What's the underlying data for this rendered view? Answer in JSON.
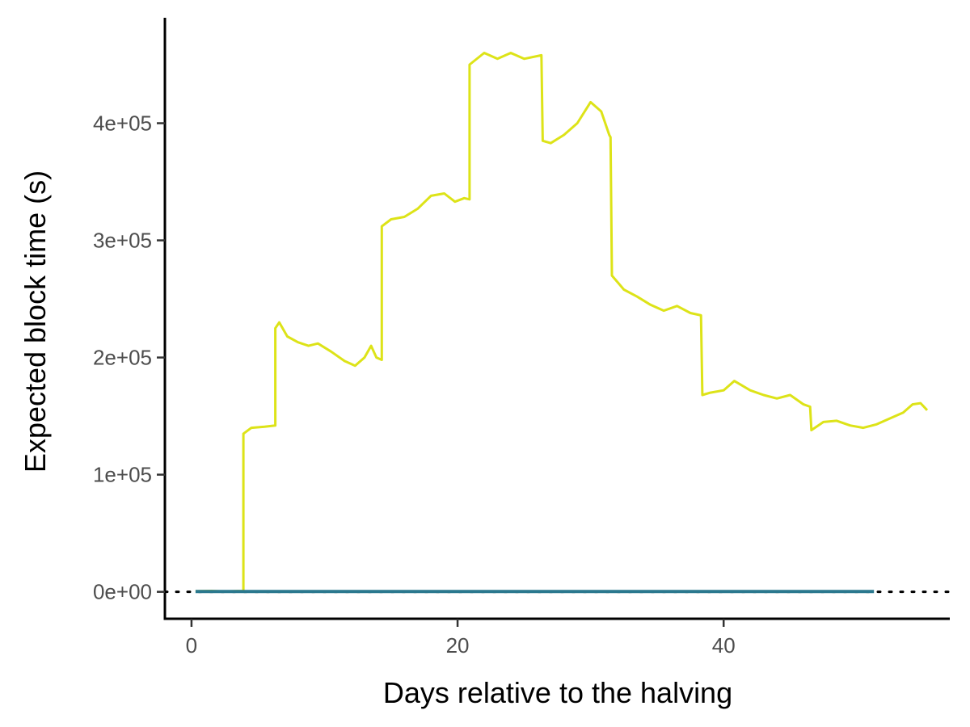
{
  "chart_data": {
    "type": "line",
    "title": "",
    "xlabel": "Days relative to the halving",
    "ylabel": "Expected block time (s)",
    "xlim": [
      -2,
      57
    ],
    "ylim": [
      -23000,
      490000
    ],
    "x_ticks": [
      {
        "value": 0,
        "label": "0"
      },
      {
        "value": 20,
        "label": "20"
      },
      {
        "value": 40,
        "label": "40"
      }
    ],
    "y_ticks": [
      {
        "value": 0,
        "label": "0e+00"
      },
      {
        "value": 100000,
        "label": "1e+05"
      },
      {
        "value": 200000,
        "label": "2e+05"
      },
      {
        "value": 300000,
        "label": "3e+05"
      },
      {
        "value": 400000,
        "label": "4e+05"
      }
    ],
    "grid": false,
    "legend": "none",
    "reference_line": {
      "y": 0,
      "style": "dotted",
      "color": "#000000"
    },
    "series": [
      {
        "color": "#dde318",
        "points": [
          [
            0.3,
            500
          ],
          [
            1.5,
            800
          ],
          [
            2.5,
            300
          ],
          [
            3.5,
            700
          ],
          [
            3.9,
            500
          ],
          [
            3.9,
            135000
          ],
          [
            4.5,
            140000
          ],
          [
            5.5,
            141000
          ],
          [
            6.3,
            142000
          ],
          [
            6.3,
            225000
          ],
          [
            6.6,
            230000
          ],
          [
            7.2,
            218000
          ],
          [
            8.0,
            213000
          ],
          [
            8.8,
            210000
          ],
          [
            9.5,
            212000
          ],
          [
            10.5,
            205000
          ],
          [
            11.5,
            197000
          ],
          [
            12.3,
            193000
          ],
          [
            13.0,
            200000
          ],
          [
            13.5,
            210000
          ],
          [
            13.9,
            200000
          ],
          [
            14.3,
            198000
          ],
          [
            14.3,
            312000
          ],
          [
            15.0,
            318000
          ],
          [
            16.0,
            320000
          ],
          [
            17.0,
            327000
          ],
          [
            18.0,
            338000
          ],
          [
            19.0,
            340000
          ],
          [
            19.8,
            333000
          ],
          [
            20.5,
            336000
          ],
          [
            20.9,
            335000
          ],
          [
            20.9,
            450000
          ],
          [
            22.0,
            460000
          ],
          [
            23.0,
            455000
          ],
          [
            24.0,
            460000
          ],
          [
            25.0,
            455000
          ],
          [
            26.3,
            458000
          ],
          [
            26.4,
            385000
          ],
          [
            27.0,
            383000
          ],
          [
            28.0,
            390000
          ],
          [
            29.0,
            400000
          ],
          [
            30.0,
            418000
          ],
          [
            30.8,
            410000
          ],
          [
            31.4,
            390000
          ],
          [
            31.5,
            388000
          ],
          [
            31.6,
            270000
          ],
          [
            32.5,
            258000
          ],
          [
            33.5,
            252000
          ],
          [
            34.5,
            245000
          ],
          [
            35.5,
            240000
          ],
          [
            36.5,
            244000
          ],
          [
            37.5,
            238000
          ],
          [
            38.3,
            236000
          ],
          [
            38.4,
            168000
          ],
          [
            39.0,
            170000
          ],
          [
            40.0,
            172000
          ],
          [
            40.8,
            180000
          ],
          [
            42.0,
            172000
          ],
          [
            43.0,
            168000
          ],
          [
            44.0,
            165000
          ],
          [
            45.0,
            168000
          ],
          [
            46.0,
            160000
          ],
          [
            46.5,
            158000
          ],
          [
            46.6,
            138000
          ],
          [
            47.5,
            145000
          ],
          [
            48.5,
            146000
          ],
          [
            49.5,
            142000
          ],
          [
            50.5,
            140000
          ],
          [
            51.5,
            143000
          ],
          [
            52.5,
            148000
          ],
          [
            53.5,
            153000
          ],
          [
            54.2,
            160000
          ],
          [
            54.8,
            161000
          ],
          [
            55.3,
            155000
          ]
        ]
      },
      {
        "color": "#2a788e",
        "points": [
          [
            0.3,
            300
          ],
          [
            51.3,
            300
          ]
        ]
      }
    ]
  }
}
